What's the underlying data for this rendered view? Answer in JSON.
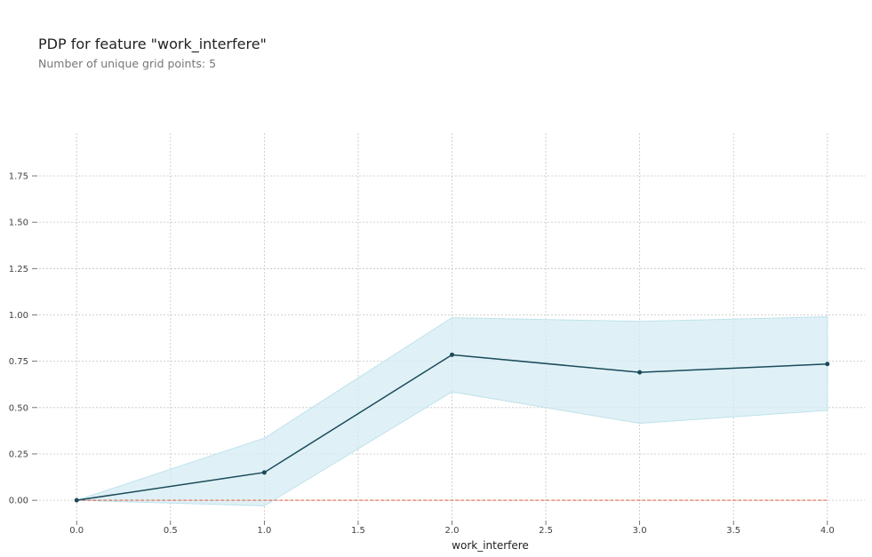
{
  "chart_data": {
    "type": "line",
    "title": "PDP for feature \"work_interfere\"",
    "subtitle": "Number of unique grid points: 5",
    "xlabel": "work_interfere",
    "ylabel": "",
    "xlim": [
      -0.2,
      4.2
    ],
    "ylim": [
      -0.1,
      1.98
    ],
    "x_ticks": [
      0.0,
      0.5,
      1.0,
      1.5,
      2.0,
      2.5,
      3.0,
      3.5,
      4.0
    ],
    "x_tick_labels": [
      "0.0",
      "0.5",
      "1.0",
      "1.5",
      "2.0",
      "2.5",
      "3.0",
      "3.5",
      "4.0"
    ],
    "y_ticks": [
      0.0,
      0.25,
      0.5,
      0.75,
      1.0,
      1.25,
      1.5,
      1.75
    ],
    "y_tick_labels": [
      "0.00",
      "0.25",
      "0.50",
      "0.75",
      "1.00",
      "1.25",
      "1.50",
      "1.75"
    ],
    "grid": true,
    "series": [
      {
        "x": [
          0,
          1,
          2,
          3,
          4
        ],
        "values": [
          0.0,
          0.15,
          0.785,
          0.69,
          0.735
        ],
        "upper": [
          0.0,
          0.335,
          0.985,
          0.965,
          0.99
        ],
        "lower": [
          0.0,
          -0.03,
          0.585,
          0.415,
          0.485
        ],
        "color": "#1a4a5a",
        "band_color": "#d4ecf3"
      }
    ],
    "reference_line": {
      "y": 0.0,
      "color": "#e05c3b"
    }
  }
}
